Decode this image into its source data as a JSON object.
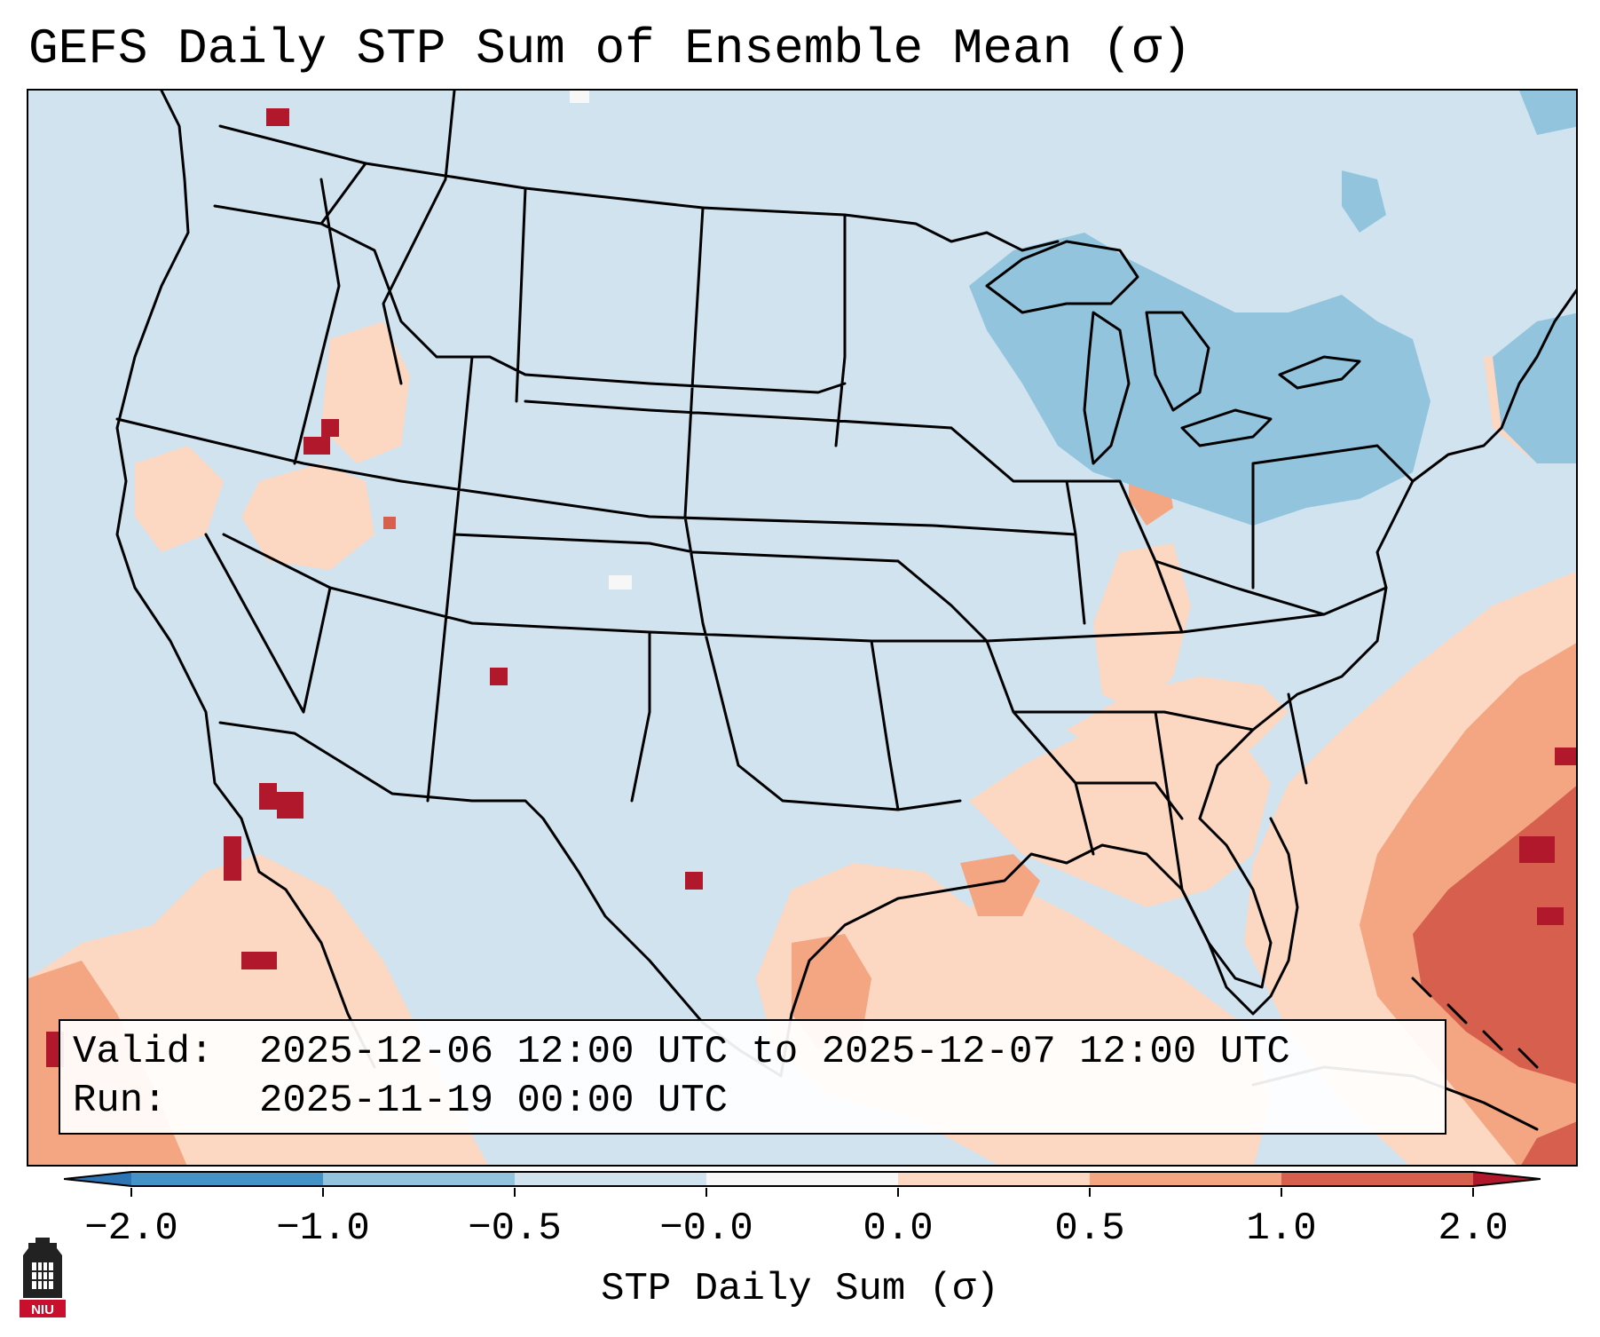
{
  "title": "GEFS Daily STP Sum of Ensemble Mean (σ)",
  "info": {
    "valid_label": "Valid:",
    "valid_value": "2025-12-06 12:00 UTC to 2025-12-07 12:00 UTC",
    "run_label": "Run:",
    "run_value": "2025-11-19 00:00 UTC"
  },
  "colorbar": {
    "label": "STP Daily Sum (σ)",
    "ticks": [
      "−2.0",
      "−1.0",
      "−0.5",
      "−0.0",
      "0.0",
      "0.5",
      "1.0",
      "2.0"
    ],
    "colors": {
      "lt_neg2": "#2c74b4",
      "neg2_neg1": "#4493c6",
      "neg1_neg05": "#92c4de",
      "neg05_0": "#d0e3ef",
      "near_zero": "#f7f7f7",
      "zero_05": "#fcd7c2",
      "p05_p1": "#f4a582",
      "p1_p2": "#d6604d",
      "gt_2": "#b2182b"
    }
  },
  "logo": {
    "text": "NIU"
  }
}
